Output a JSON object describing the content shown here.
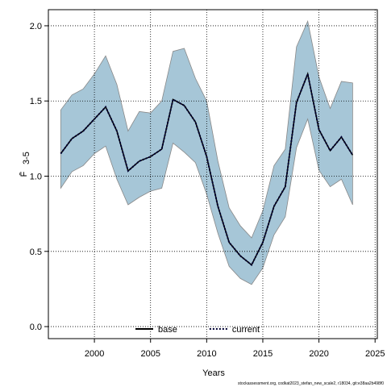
{
  "chart_data": {
    "type": "line",
    "xlabel": "Years",
    "ylabel": "F̄",
    "ylabel_subscript": "3-5",
    "source": "stockassessment.org, codkat2023_stefan_new_scale2, r18034, git:e38aa2b498f0",
    "x": [
      1997,
      1998,
      1999,
      2000,
      2001,
      2002,
      2003,
      2004,
      2005,
      2006,
      2007,
      2008,
      2009,
      2010,
      2011,
      2012,
      2013,
      2014,
      2015,
      2016,
      2017,
      2018,
      2019,
      2020,
      2021,
      2022,
      2023
    ],
    "series": [
      {
        "name": "base",
        "color": "#000000",
        "dash": "solid",
        "values": [
          1.15,
          1.25,
          1.3,
          1.38,
          1.46,
          1.3,
          1.035,
          1.1,
          1.13,
          1.18,
          1.51,
          1.47,
          1.36,
          1.13,
          0.8,
          0.56,
          0.47,
          0.41,
          0.56,
          0.8,
          0.93,
          1.49,
          1.68,
          1.31,
          1.17,
          1.26,
          1.14
        ]
      },
      {
        "name": "current",
        "color": "#000033",
        "dash": "dotted",
        "band_color": "#a6c6d7",
        "band_edge": "#888888",
        "values": [
          1.15,
          1.25,
          1.3,
          1.38,
          1.46,
          1.3,
          1.035,
          1.1,
          1.13,
          1.18,
          1.51,
          1.47,
          1.36,
          1.13,
          0.8,
          0.56,
          0.47,
          0.41,
          0.56,
          0.8,
          0.93,
          1.49,
          1.68,
          1.31,
          1.17,
          1.26,
          1.14
        ],
        "lower": [
          0.92,
          1.03,
          1.07,
          1.15,
          1.2,
          0.98,
          0.81,
          0.86,
          0.9,
          0.92,
          1.22,
          1.16,
          1.09,
          0.88,
          0.62,
          0.4,
          0.32,
          0.28,
          0.39,
          0.61,
          0.73,
          1.19,
          1.38,
          1.04,
          0.93,
          0.98,
          0.81
        ],
        "upper": [
          1.44,
          1.54,
          1.58,
          1.68,
          1.8,
          1.61,
          1.3,
          1.43,
          1.42,
          1.5,
          1.83,
          1.85,
          1.65,
          1.5,
          1.1,
          0.79,
          0.67,
          0.59,
          0.77,
          1.07,
          1.18,
          1.86,
          2.03,
          1.66,
          1.45,
          1.63,
          1.62
        ]
      }
    ],
    "xlim": [
      1995.9,
      2025.2
    ],
    "ylim": [
      -0.08,
      2.107
    ],
    "xticks": [
      2000,
      2005,
      2010,
      2015,
      2020,
      2025
    ],
    "yticks": [
      {
        "value": 0,
        "label": "0.0"
      },
      {
        "value": 0.5,
        "label": "0.5"
      },
      {
        "value": 1,
        "label": "1.0"
      },
      {
        "value": 1.5,
        "label": "1.5"
      },
      {
        "value": 2,
        "label": "2.0"
      }
    ],
    "grid": true,
    "legend": "bottom"
  }
}
